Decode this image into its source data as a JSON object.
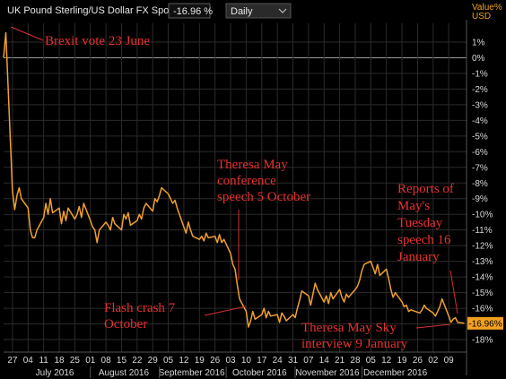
{
  "header": {
    "title": "UK Pound Sterling/US Dollar FX Spot Rate",
    "change": "-16.96 %",
    "frequency": "Daily",
    "unit_line1": "Value%",
    "unit_line2": "USD"
  },
  "colors": {
    "background": "#000000",
    "series": "#f0a030",
    "annotation": "#e83030",
    "last_value_tag": "#f3a020"
  },
  "chart_data": {
    "type": "line",
    "title": "UK Pound Sterling/US Dollar FX Spot Rate",
    "xlabel": "",
    "ylabel": "Value% USD",
    "ylim": [
      -18.8,
      2.2
    ],
    "y_tick_values": [
      1,
      0,
      -1,
      -2,
      -3,
      -4,
      -5,
      -6,
      -7,
      -8,
      -9,
      -10,
      -11,
      -12,
      -13,
      -14,
      -15,
      -16,
      -17,
      -18
    ],
    "y_tick_labels": [
      "1%",
      "0%",
      "-1%",
      "-2%",
      "-3%",
      "-4%",
      "-5%",
      "-6%",
      "-7%",
      "-8%",
      "-9%",
      "-10%",
      "-11%",
      "-12%",
      "-13%",
      "-14%",
      "-15%",
      "-16%",
      "-17%",
      "-18%"
    ],
    "x_start": "2016-06-23",
    "x_end": "2017-01-17",
    "x_ticks": [
      {
        "date": "2016-06-27",
        "label": "27"
      },
      {
        "date": "2016-07-04",
        "label": "04"
      },
      {
        "date": "2016-07-11",
        "label": "11"
      },
      {
        "date": "2016-07-18",
        "label": "18"
      },
      {
        "date": "2016-07-25",
        "label": "25"
      },
      {
        "date": "2016-08-01",
        "label": "01"
      },
      {
        "date": "2016-08-08",
        "label": "08"
      },
      {
        "date": "2016-08-15",
        "label": "15"
      },
      {
        "date": "2016-08-22",
        "label": "22"
      },
      {
        "date": "2016-08-29",
        "label": "29"
      },
      {
        "date": "2016-09-05",
        "label": "05"
      },
      {
        "date": "2016-09-12",
        "label": "12"
      },
      {
        "date": "2016-09-19",
        "label": "19"
      },
      {
        "date": "2016-09-26",
        "label": "26"
      },
      {
        "date": "2016-10-03",
        "label": "03"
      },
      {
        "date": "2016-10-10",
        "label": "10"
      },
      {
        "date": "2016-10-17",
        "label": "17"
      },
      {
        "date": "2016-10-24",
        "label": "24"
      },
      {
        "date": "2016-10-31",
        "label": "31"
      },
      {
        "date": "2016-11-07",
        "label": "07"
      },
      {
        "date": "2016-11-14",
        "label": "14"
      },
      {
        "date": "2016-11-21",
        "label": "21"
      },
      {
        "date": "2016-11-28",
        "label": "28"
      },
      {
        "date": "2016-12-05",
        "label": "05"
      },
      {
        "date": "2016-12-12",
        "label": "12"
      },
      {
        "date": "2016-12-19",
        "label": "19"
      },
      {
        "date": "2016-12-26",
        "label": "26"
      },
      {
        "date": "2017-01-02",
        "label": "02"
      },
      {
        "date": "2017-01-09",
        "label": "09"
      }
    ],
    "month_labels": [
      {
        "label": "July 2016",
        "start": "2016-07-01",
        "end": "2016-07-31"
      },
      {
        "label": "August 2016",
        "start": "2016-08-01",
        "end": "2016-08-31"
      },
      {
        "label": "September 2016",
        "start": "2016-09-01",
        "end": "2016-09-30"
      },
      {
        "label": "October 2016",
        "start": "2016-10-01",
        "end": "2016-10-31"
      },
      {
        "label": "November 2016",
        "start": "2016-11-01",
        "end": "2016-11-30"
      },
      {
        "label": "December 2016",
        "start": "2016-12-01",
        "end": "2016-12-31"
      }
    ],
    "series": [
      {
        "points": [
          [
            "2016-06-23",
            0.0
          ],
          [
            "2016-06-24",
            1.6
          ],
          [
            "2016-06-27",
            -8.5
          ],
          [
            "2016-06-28",
            -9.7
          ],
          [
            "2016-06-29",
            -8.8
          ],
          [
            "2016-06-30",
            -8.3
          ],
          [
            "2016-07-01",
            -9.0
          ],
          [
            "2016-07-04",
            -9.6
          ],
          [
            "2016-07-05",
            -11.0
          ],
          [
            "2016-07-06",
            -11.5
          ],
          [
            "2016-07-07",
            -11.5
          ],
          [
            "2016-07-08",
            -11.0
          ],
          [
            "2016-07-11",
            -10.2
          ],
          [
            "2016-07-12",
            -9.3
          ],
          [
            "2016-07-13",
            -10.0
          ],
          [
            "2016-07-14",
            -9.0
          ],
          [
            "2016-07-15",
            -9.9
          ],
          [
            "2016-07-18",
            -9.6
          ],
          [
            "2016-07-19",
            -10.6
          ],
          [
            "2016-07-20",
            -9.8
          ],
          [
            "2016-07-21",
            -10.4
          ],
          [
            "2016-07-22",
            -9.6
          ],
          [
            "2016-07-25",
            -10.3
          ],
          [
            "2016-07-26",
            -10.0
          ],
          [
            "2016-07-27",
            -9.5
          ],
          [
            "2016-07-28",
            -10.2
          ],
          [
            "2016-07-29",
            -9.3
          ],
          [
            "2016-08-01",
            -10.4
          ],
          [
            "2016-08-02",
            -10.8
          ],
          [
            "2016-08-03",
            -11.0
          ],
          [
            "2016-08-04",
            -11.8
          ],
          [
            "2016-08-05",
            -11.0
          ],
          [
            "2016-08-08",
            -10.5
          ],
          [
            "2016-08-09",
            -10.7
          ],
          [
            "2016-08-10",
            -11.0
          ],
          [
            "2016-08-11",
            -10.2
          ],
          [
            "2016-08-12",
            -10.6
          ],
          [
            "2016-08-15",
            -11.0
          ],
          [
            "2016-08-16",
            -10.0
          ],
          [
            "2016-08-17",
            -10.3
          ],
          [
            "2016-08-18",
            -9.9
          ],
          [
            "2016-08-19",
            -10.7
          ],
          [
            "2016-08-22",
            -10.4
          ],
          [
            "2016-08-23",
            -10.0
          ],
          [
            "2016-08-24",
            -10.3
          ],
          [
            "2016-08-25",
            -9.6
          ],
          [
            "2016-08-26",
            -9.3
          ],
          [
            "2016-08-29",
            -9.8
          ],
          [
            "2016-08-30",
            -9.0
          ],
          [
            "2016-08-31",
            -9.2
          ],
          [
            "2016-09-01",
            -8.8
          ],
          [
            "2016-09-02",
            -8.3
          ],
          [
            "2016-09-05",
            -8.7
          ],
          [
            "2016-09-06",
            -9.0
          ],
          [
            "2016-09-07",
            -9.3
          ],
          [
            "2016-09-08",
            -9.1
          ],
          [
            "2016-09-09",
            -9.6
          ],
          [
            "2016-09-12",
            -10.8
          ],
          [
            "2016-09-13",
            -11.2
          ],
          [
            "2016-09-14",
            -10.5
          ],
          [
            "2016-09-15",
            -11.0
          ],
          [
            "2016-09-16",
            -11.4
          ],
          [
            "2016-09-19",
            -11.6
          ],
          [
            "2016-09-20",
            -11.4
          ],
          [
            "2016-09-21",
            -11.7
          ],
          [
            "2016-09-22",
            -11.2
          ],
          [
            "2016-09-23",
            -11.5
          ],
          [
            "2016-09-26",
            -11.4
          ],
          [
            "2016-09-27",
            -11.8
          ],
          [
            "2016-09-28",
            -11.3
          ],
          [
            "2016-09-29",
            -11.8
          ],
          [
            "2016-09-30",
            -11.6
          ],
          [
            "2016-10-03",
            -12.5
          ],
          [
            "2016-10-04",
            -13.2
          ],
          [
            "2016-10-05",
            -13.5
          ],
          [
            "2016-10-06",
            -14.5
          ],
          [
            "2016-10-07",
            -15.4
          ],
          [
            "2016-10-10",
            -16.2
          ],
          [
            "2016-10-11",
            -17.2
          ],
          [
            "2016-10-12",
            -16.8
          ],
          [
            "2016-10-13",
            -16.2
          ],
          [
            "2016-10-14",
            -16.7
          ],
          [
            "2016-10-17",
            -16.4
          ],
          [
            "2016-10-18",
            -16.0
          ],
          [
            "2016-10-19",
            -16.6
          ],
          [
            "2016-10-20",
            -16.2
          ],
          [
            "2016-10-21",
            -16.5
          ],
          [
            "2016-10-24",
            -16.4
          ],
          [
            "2016-10-25",
            -16.9
          ],
          [
            "2016-10-26",
            -16.3
          ],
          [
            "2016-10-27",
            -16.5
          ],
          [
            "2016-10-28",
            -16.8
          ],
          [
            "2016-10-31",
            -16.4
          ],
          [
            "2016-11-01",
            -16.6
          ],
          [
            "2016-11-02",
            -16.0
          ],
          [
            "2016-11-03",
            -15.5
          ],
          [
            "2016-11-04",
            -14.9
          ],
          [
            "2016-11-07",
            -15.2
          ],
          [
            "2016-11-08",
            -15.8
          ],
          [
            "2016-11-09",
            -15.1
          ],
          [
            "2016-11-10",
            -14.4
          ],
          [
            "2016-11-11",
            -14.8
          ],
          [
            "2016-11-14",
            -15.6
          ],
          [
            "2016-11-15",
            -15.2
          ],
          [
            "2016-11-16",
            -15.7
          ],
          [
            "2016-11-17",
            -15.0
          ],
          [
            "2016-11-18",
            -15.4
          ],
          [
            "2016-11-21",
            -14.8
          ],
          [
            "2016-11-22",
            -15.3
          ],
          [
            "2016-11-23",
            -15.6
          ],
          [
            "2016-11-24",
            -15.1
          ],
          [
            "2016-11-25",
            -15.3
          ],
          [
            "2016-11-28",
            -14.8
          ],
          [
            "2016-11-29",
            -14.6
          ],
          [
            "2016-11-30",
            -14.2
          ],
          [
            "2016-12-01",
            -13.6
          ],
          [
            "2016-12-02",
            -13.2
          ],
          [
            "2016-12-05",
            -13.0
          ],
          [
            "2016-12-06",
            -13.4
          ],
          [
            "2016-12-07",
            -13.8
          ],
          [
            "2016-12-08",
            -13.2
          ],
          [
            "2016-12-09",
            -13.9
          ],
          [
            "2016-12-12",
            -13.5
          ],
          [
            "2016-12-13",
            -14.1
          ],
          [
            "2016-12-14",
            -14.8
          ],
          [
            "2016-12-15",
            -15.3
          ],
          [
            "2016-12-16",
            -15.0
          ],
          [
            "2016-12-19",
            -15.6
          ],
          [
            "2016-12-20",
            -15.9
          ],
          [
            "2016-12-21",
            -15.8
          ],
          [
            "2016-12-22",
            -16.2
          ],
          [
            "2016-12-23",
            -16.1
          ],
          [
            "2016-12-27",
            -16.3
          ],
          [
            "2016-12-28",
            -16.1
          ],
          [
            "2016-12-29",
            -15.8
          ],
          [
            "2016-12-30",
            -16.0
          ],
          [
            "2017-01-02",
            -16.3
          ],
          [
            "2017-01-03",
            -16.5
          ],
          [
            "2017-01-04",
            -16.2
          ],
          [
            "2017-01-05",
            -15.9
          ],
          [
            "2017-01-06",
            -15.4
          ],
          [
            "2017-01-09",
            -16.5
          ],
          [
            "2017-01-10",
            -16.9
          ],
          [
            "2017-01-11",
            -16.7
          ],
          [
            "2017-01-12",
            -16.6
          ],
          [
            "2017-01-13",
            -16.9
          ],
          [
            "2017-01-16",
            -16.96
          ]
        ]
      }
    ],
    "last_value_label": "-16.96%",
    "annotations": [
      {
        "lines": [
          "Brexit vote 23 June"
        ]
      },
      {
        "lines": [
          "Theresa May",
          "conference",
          "speech 5 October"
        ]
      },
      {
        "lines": [
          "Flash crash 7",
          "October"
        ]
      },
      {
        "lines": [
          "Theresa May Sky",
          "interview 9 January"
        ]
      },
      {
        "lines": [
          "Reports of",
          "May's",
          "Tuesday",
          "speech 16",
          "January"
        ]
      }
    ]
  }
}
